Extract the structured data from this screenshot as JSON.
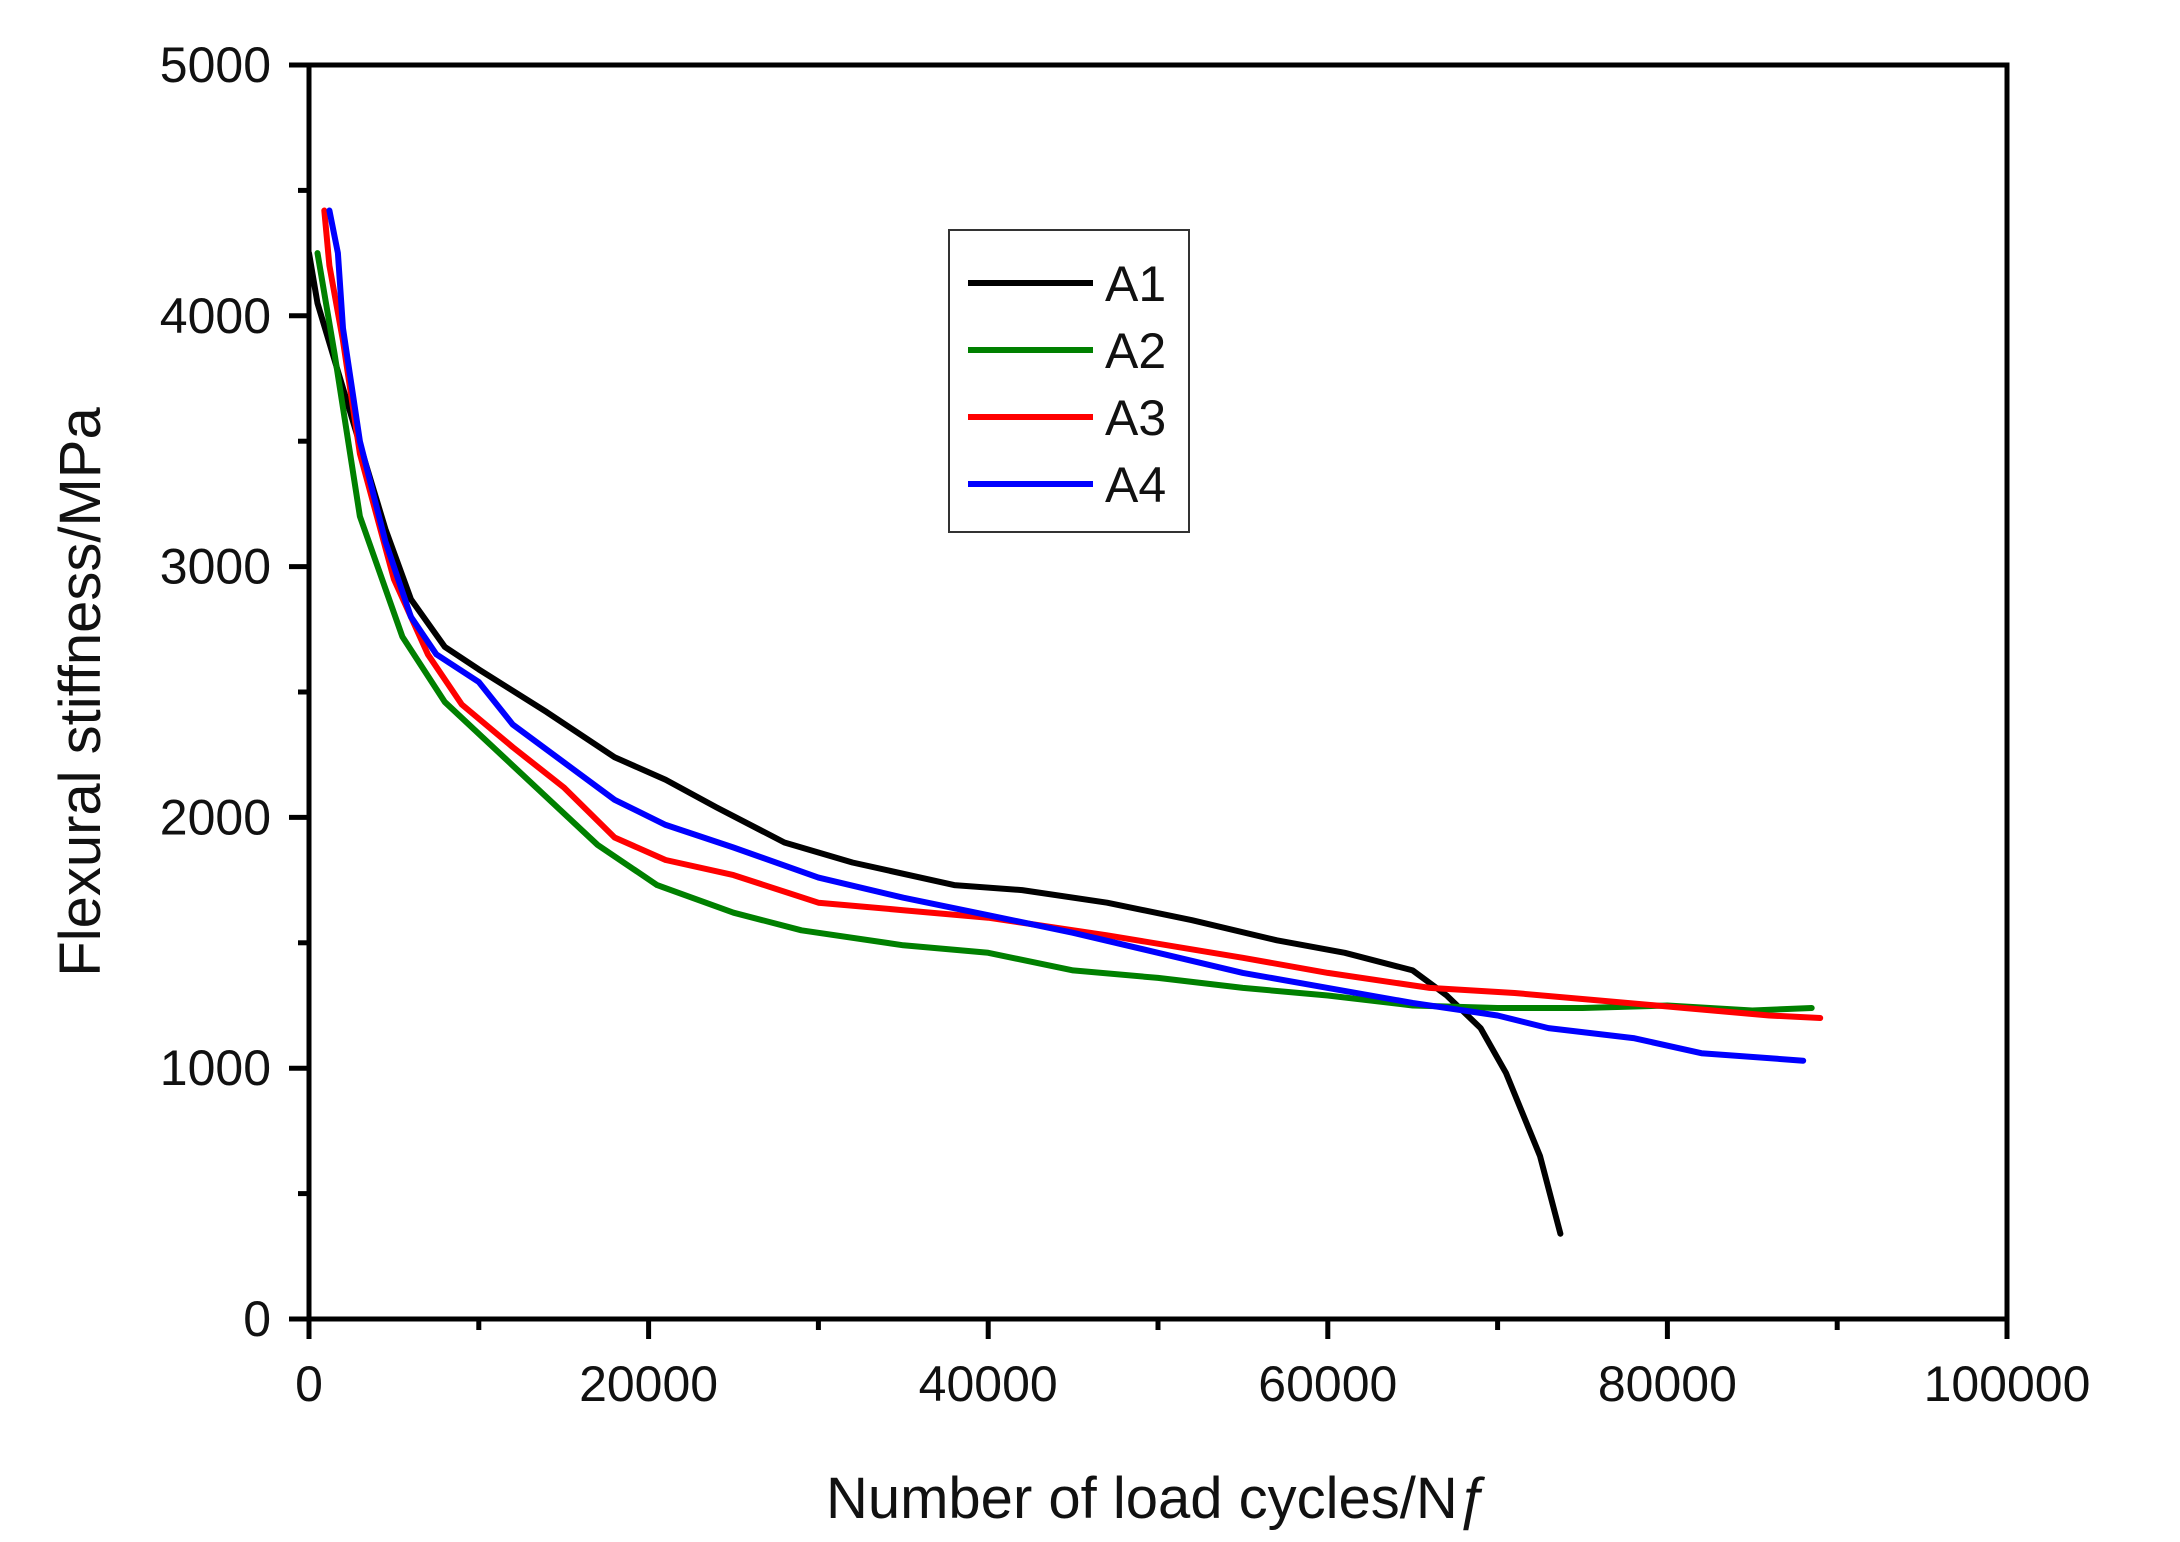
{
  "chart_data": {
    "type": "line",
    "xlabel": "Number of load cycles/Nƒ",
    "ylabel": "Flexural stiffness/MPa",
    "xlim": [
      0,
      100000
    ],
    "ylim": [
      0,
      5000
    ],
    "x_ticks": [
      0,
      20000,
      40000,
      60000,
      80000,
      100000
    ],
    "y_ticks": [
      0,
      1000,
      2000,
      3000,
      4000,
      5000
    ],
    "x_tick_labels": [
      "0",
      "20000",
      "40000",
      "60000",
      "80000",
      "100000"
    ],
    "y_tick_labels": [
      "0",
      "1000",
      "2000",
      "3000",
      "4000",
      "5000"
    ],
    "grid": false,
    "legend_position": "upper-center",
    "series": [
      {
        "name": "A1",
        "color": "#000000",
        "points": [
          [
            0,
            4250
          ],
          [
            500,
            4050
          ],
          [
            2500,
            3600
          ],
          [
            4500,
            3150
          ],
          [
            6000,
            2870
          ],
          [
            8000,
            2680
          ],
          [
            10000,
            2590
          ],
          [
            14000,
            2420
          ],
          [
            18000,
            2240
          ],
          [
            21000,
            2150
          ],
          [
            24000,
            2040
          ],
          [
            28000,
            1900
          ],
          [
            32000,
            1820
          ],
          [
            38000,
            1730
          ],
          [
            42000,
            1710
          ],
          [
            47000,
            1660
          ],
          [
            52000,
            1590
          ],
          [
            57000,
            1510
          ],
          [
            61000,
            1460
          ],
          [
            65000,
            1390
          ],
          [
            67000,
            1290
          ],
          [
            69000,
            1160
          ],
          [
            70500,
            980
          ],
          [
            72500,
            650
          ],
          [
            73700,
            340
          ]
        ]
      },
      {
        "name": "A2",
        "color": "#008000",
        "points": [
          [
            500,
            4250
          ],
          [
            1500,
            3850
          ],
          [
            3000,
            3200
          ],
          [
            5500,
            2720
          ],
          [
            8000,
            2460
          ],
          [
            11000,
            2270
          ],
          [
            14000,
            2080
          ],
          [
            17000,
            1890
          ],
          [
            20500,
            1730
          ],
          [
            25000,
            1620
          ],
          [
            29000,
            1550
          ],
          [
            35000,
            1490
          ],
          [
            40000,
            1460
          ],
          [
            45000,
            1390
          ],
          [
            50000,
            1360
          ],
          [
            55000,
            1320
          ],
          [
            60000,
            1290
          ],
          [
            65000,
            1250
          ],
          [
            70000,
            1240
          ],
          [
            75000,
            1240
          ],
          [
            80000,
            1250
          ],
          [
            85000,
            1230
          ],
          [
            88500,
            1240
          ]
        ]
      },
      {
        "name": "A3",
        "color": "#ff0000",
        "points": [
          [
            900,
            4420
          ],
          [
            1200,
            4200
          ],
          [
            2000,
            3900
          ],
          [
            3000,
            3450
          ],
          [
            5000,
            2950
          ],
          [
            7000,
            2650
          ],
          [
            9000,
            2450
          ],
          [
            12000,
            2280
          ],
          [
            15000,
            2120
          ],
          [
            18000,
            1920
          ],
          [
            21000,
            1830
          ],
          [
            25000,
            1770
          ],
          [
            30000,
            1660
          ],
          [
            35000,
            1630
          ],
          [
            40000,
            1600
          ],
          [
            47000,
            1530
          ],
          [
            55000,
            1440
          ],
          [
            60000,
            1380
          ],
          [
            66000,
            1320
          ],
          [
            71000,
            1300
          ],
          [
            76000,
            1270
          ],
          [
            81000,
            1240
          ],
          [
            86000,
            1210
          ],
          [
            89000,
            1200
          ]
        ]
      },
      {
        "name": "A4",
        "color": "#0000ff",
        "points": [
          [
            1200,
            4420
          ],
          [
            1700,
            4250
          ],
          [
            2000,
            3950
          ],
          [
            3000,
            3500
          ],
          [
            4500,
            3100
          ],
          [
            6000,
            2800
          ],
          [
            7500,
            2650
          ],
          [
            10000,
            2540
          ],
          [
            12000,
            2370
          ],
          [
            15000,
            2220
          ],
          [
            18000,
            2070
          ],
          [
            21000,
            1970
          ],
          [
            25000,
            1880
          ],
          [
            30000,
            1760
          ],
          [
            35000,
            1680
          ],
          [
            40000,
            1610
          ],
          [
            45000,
            1540
          ],
          [
            50000,
            1460
          ],
          [
            55000,
            1380
          ],
          [
            60000,
            1320
          ],
          [
            65000,
            1260
          ],
          [
            70000,
            1210
          ],
          [
            73000,
            1160
          ],
          [
            78000,
            1120
          ],
          [
            82000,
            1060
          ],
          [
            88000,
            1030
          ]
        ]
      }
    ]
  }
}
